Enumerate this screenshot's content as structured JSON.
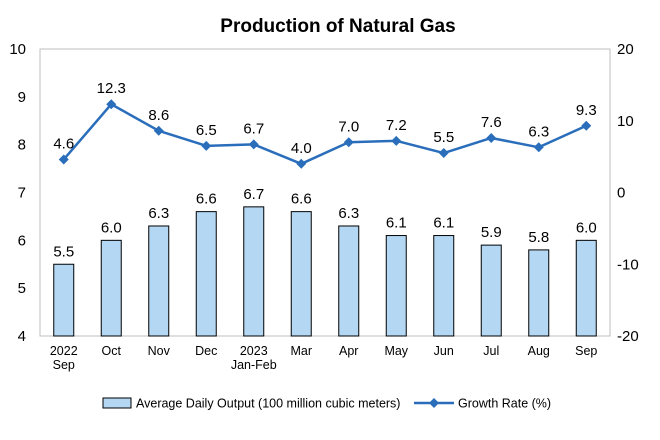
{
  "chart_data": {
    "type": "bar",
    "title": "Production of Natural Gas",
    "categories": [
      [
        "2022",
        "Sep"
      ],
      [
        "Oct"
      ],
      [
        "Nov"
      ],
      [
        "Dec"
      ],
      [
        "2023",
        "Jan-Feb"
      ],
      [
        "Mar"
      ],
      [
        "Apr"
      ],
      [
        "May"
      ],
      [
        "Jun"
      ],
      [
        "Jul"
      ],
      [
        "Aug"
      ],
      [
        "Sep"
      ]
    ],
    "series": [
      {
        "name": "Average Daily Output (100 million cubic meters)",
        "type": "bar",
        "axis": "left",
        "values": [
          5.5,
          6.0,
          6.3,
          6.6,
          6.7,
          6.6,
          6.3,
          6.1,
          6.1,
          5.9,
          5.8,
          6.0
        ],
        "labels": [
          "5.5",
          "6.0",
          "6.3",
          "6.6",
          "6.7",
          "6.6",
          "6.3",
          "6.1",
          "6.1",
          "5.9",
          "5.8",
          "6.0"
        ],
        "color": "#b4d8f4",
        "border_color": "#000000"
      },
      {
        "name": "Growth Rate (%)",
        "type": "line",
        "axis": "right",
        "values": [
          4.6,
          12.3,
          8.6,
          6.5,
          6.7,
          4.0,
          7.0,
          7.2,
          5.5,
          7.6,
          6.3,
          9.3
        ],
        "labels": [
          "4.6",
          "12.3",
          "8.6",
          "6.5",
          "6.7",
          "4.0",
          "7.0",
          "7.2",
          "5.5",
          "7.6",
          "6.3",
          "9.3"
        ],
        "color": "#2a6ebb",
        "marker": "diamond"
      }
    ],
    "left_axis": {
      "ylim": [
        4,
        10
      ],
      "ticks": [
        "4",
        "5",
        "6",
        "7",
        "8",
        "9",
        "10"
      ]
    },
    "right_axis": {
      "ylim": [
        -20,
        20
      ],
      "ticks": [
        "-20",
        "-10",
        "0",
        "10",
        "20"
      ]
    },
    "legend_position": "bottom",
    "grid": false
  }
}
